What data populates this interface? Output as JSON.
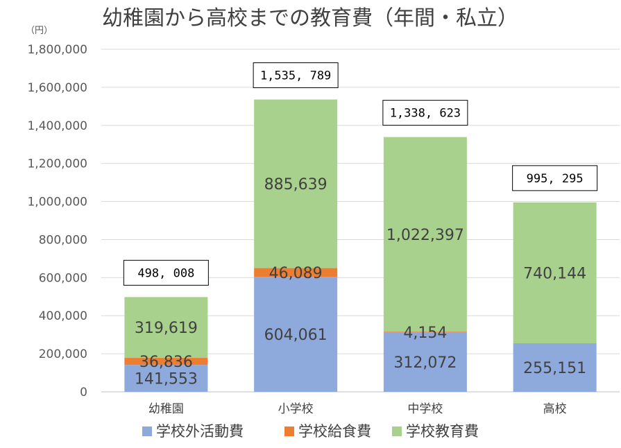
{
  "chart_data": {
    "type": "bar",
    "stacked": true,
    "title": "幼稚園から高校までの教育費（年間・私立）",
    "unit_label": "（円）",
    "categories": [
      "幼稚園",
      "小学校",
      "中学校",
      "高校"
    ],
    "series": [
      {
        "name": "学校外活動費",
        "color": "#8EA9DB",
        "values": [
          141553,
          604061,
          312072,
          255151
        ],
        "labels": [
          "141,553",
          "604,061",
          "312,072",
          "255,151"
        ]
      },
      {
        "name": "学校給食費",
        "color": "#ED7D31",
        "values": [
          36836,
          46089,
          4154,
          0
        ],
        "labels": [
          "36,836",
          "46,089",
          "4,154",
          ""
        ]
      },
      {
        "name": "学校教育費",
        "color": "#A9D18E",
        "values": [
          319619,
          885639,
          1022397,
          740144
        ],
        "labels": [
          "319,619",
          "885,639",
          "1,022,397",
          "740,144"
        ]
      }
    ],
    "totals": [
      498008,
      1535789,
      1338623,
      995295
    ],
    "total_labels": [
      "498, 008",
      "1,535, 789",
      "1,338, 623",
      "995, 295"
    ],
    "ylim": [
      0,
      1800000
    ],
    "yticks": [
      0,
      200000,
      400000,
      600000,
      800000,
      1000000,
      1200000,
      1400000,
      1600000,
      1800000
    ],
    "ytick_labels": [
      "0",
      "200,000",
      "400,000",
      "600,000",
      "800,000",
      "1,000,000",
      "1,200,000",
      "1,400,000",
      "1,600,000",
      "1,800,000"
    ],
    "grid": true,
    "legend_position": "bottom"
  }
}
